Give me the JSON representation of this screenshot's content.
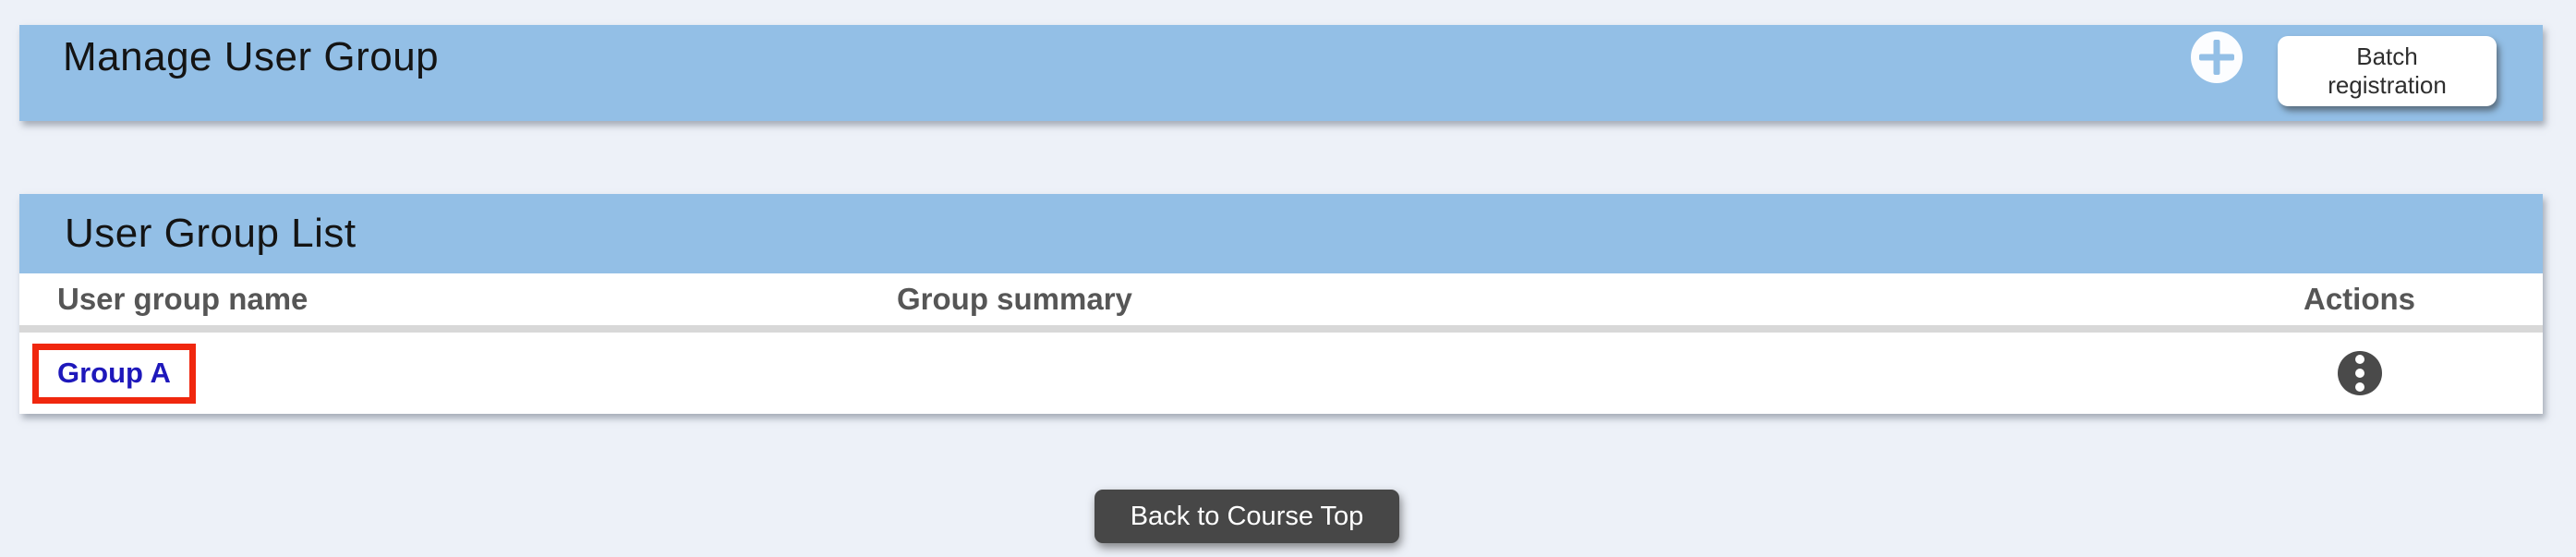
{
  "colors": {
    "page_background": "#edf1f8",
    "bar_blue": "#93bfe6",
    "highlight_red": "#f0270e",
    "link_blue": "#1e18bb",
    "back_button_gray": "#474747"
  },
  "header_bar": {
    "title": "Manage User Group",
    "add_button_icon": "plus-icon",
    "batch_button_label": "Batch registration"
  },
  "user_group_list": {
    "title": "User Group List",
    "columns": [
      "User group name",
      "Group summary",
      "Actions"
    ],
    "rows": [
      {
        "name": "Group A",
        "summary": "",
        "actions_icon": "kebab-menu-icon",
        "highlighted": true
      }
    ]
  },
  "footer": {
    "back_button_label": "Back to Course Top"
  }
}
